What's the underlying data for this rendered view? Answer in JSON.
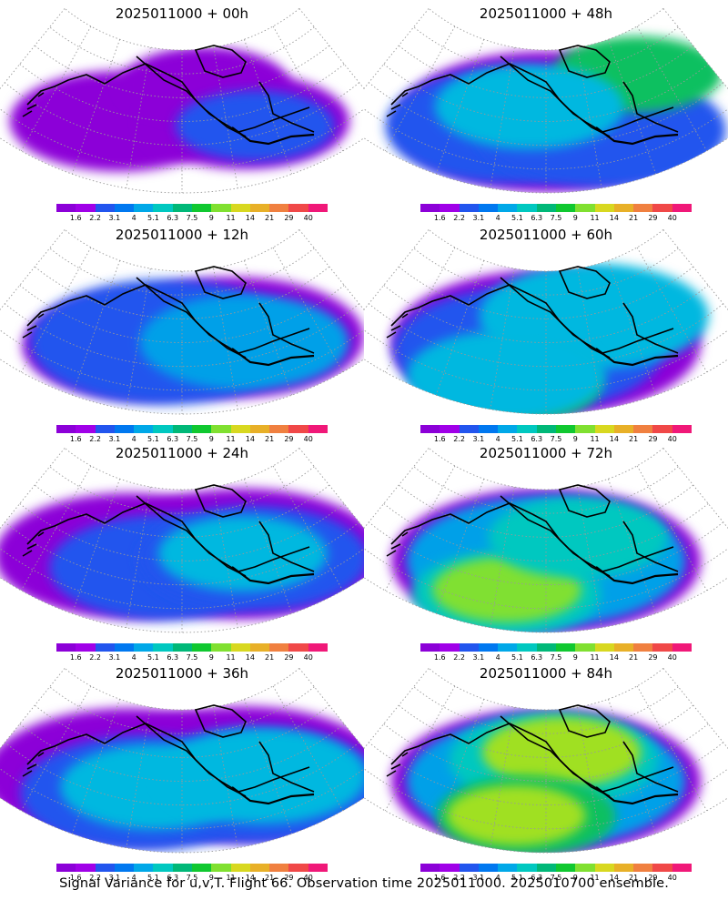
{
  "chart_data": {
    "type": "heatmap",
    "panels": [
      {
        "title": "2025011000 + 00h",
        "lead_hours": 0,
        "blobs": [
          [
            -0.35,
            0.55,
            0.55,
            "#8c00d8"
          ],
          [
            0.35,
            0.55,
            0.5,
            "#8c00d8"
          ],
          [
            0.15,
            0.25,
            0.3,
            "#8c00d8"
          ],
          [
            0.4,
            0.6,
            0.25,
            "#2255ee"
          ]
        ]
      },
      {
        "title": "2025011000 + 12h",
        "lead_hours": 12,
        "blobs": [
          [
            -0.25,
            0.55,
            0.6,
            "#8c00d8"
          ],
          [
            0.3,
            0.5,
            0.75,
            "#8c00d8"
          ],
          [
            -0.1,
            0.5,
            0.8,
            "#2255ee"
          ],
          [
            0.35,
            0.55,
            0.5,
            "#00a0e8"
          ]
        ]
      },
      {
        "title": "2025011000 + 24h",
        "lead_hours": 24,
        "blobs": [
          [
            -0.3,
            0.5,
            0.8,
            "#8c00d8"
          ],
          [
            0.35,
            0.5,
            0.85,
            "#8c00d8"
          ],
          [
            -0.1,
            0.55,
            0.6,
            "#2255ee"
          ],
          [
            0.4,
            0.55,
            0.6,
            "#2255ee"
          ],
          [
            0.35,
            0.5,
            0.3,
            "#00b8e0"
          ]
        ]
      },
      {
        "title": "2025011000 + 36h",
        "lead_hours": 36,
        "blobs": [
          [
            -0.3,
            0.5,
            0.9,
            "#8c00d8"
          ],
          [
            0.35,
            0.5,
            0.9,
            "#8c00d8"
          ],
          [
            -0.2,
            0.6,
            0.7,
            "#2255ee"
          ],
          [
            0.4,
            0.6,
            0.7,
            "#2255ee"
          ],
          [
            -0.15,
            0.55,
            0.4,
            "#00b8e0"
          ],
          [
            0.45,
            0.55,
            0.5,
            "#00b8e0"
          ]
        ]
      },
      {
        "title": "2025011000 + 48h",
        "lead_hours": 48,
        "blobs": [
          [
            0.0,
            0.5,
            0.95,
            "#8c00d8"
          ],
          [
            -0.2,
            0.55,
            0.7,
            "#2255ee"
          ],
          [
            0.3,
            0.6,
            0.7,
            "#2255ee"
          ],
          [
            0.6,
            0.3,
            0.3,
            "#10c060"
          ],
          [
            -0.1,
            0.4,
            0.4,
            "#00b8e0"
          ]
        ]
      },
      {
        "title": "2025011000 + 60h",
        "lead_hours": 60,
        "blobs": [
          [
            0.0,
            0.5,
            1.0,
            "#8c00d8"
          ],
          [
            -0.1,
            0.55,
            0.8,
            "#2255ee"
          ],
          [
            0.3,
            0.35,
            0.6,
            "#00b8e0"
          ],
          [
            -0.15,
            0.8,
            0.3,
            "#20c040"
          ],
          [
            -0.2,
            0.75,
            0.45,
            "#00b8e0"
          ]
        ]
      },
      {
        "title": "2025011000 + 72h",
        "lead_hours": 72,
        "blobs": [
          [
            0.0,
            0.5,
            1.0,
            "#8c00d8"
          ],
          [
            0.0,
            0.5,
            0.85,
            "#00a0e8"
          ],
          [
            -0.2,
            0.75,
            0.4,
            "#00c8c0"
          ],
          [
            -0.2,
            0.72,
            0.2,
            "#80e030"
          ],
          [
            0.2,
            0.35,
            0.35,
            "#00c8c0"
          ]
        ]
      },
      {
        "title": "2025011000 + 84h",
        "lead_hours": 84,
        "blobs": [
          [
            0.0,
            0.5,
            1.0,
            "#8c00d8"
          ],
          [
            0.0,
            0.5,
            0.85,
            "#00a0e8"
          ],
          [
            0.05,
            0.35,
            0.5,
            "#00c8c0"
          ],
          [
            0.1,
            0.3,
            0.25,
            "#a0e020"
          ],
          [
            -0.1,
            0.75,
            0.35,
            "#10c060"
          ],
          [
            -0.15,
            0.75,
            0.15,
            "#a0e020"
          ]
        ]
      }
    ],
    "colorbar": {
      "levels": [
        "1.6",
        "2.2",
        "3.1",
        "4",
        "5.1",
        "6.3",
        "7.5",
        "9",
        "11",
        "14",
        "21",
        "29",
        "40"
      ],
      "colors": [
        "#8c00d8",
        "#a000e8",
        "#2255ee",
        "#0078f0",
        "#00a8e8",
        "#00c8c0",
        "#00b878",
        "#10c830",
        "#80e030",
        "#d8d820",
        "#e8b028",
        "#f08040",
        "#f04848",
        "#f01878"
      ]
    },
    "caption": "Signal Variance for u,v,T. Flight 66. Observation time 2025011000. 2025010700 ensemble."
  }
}
